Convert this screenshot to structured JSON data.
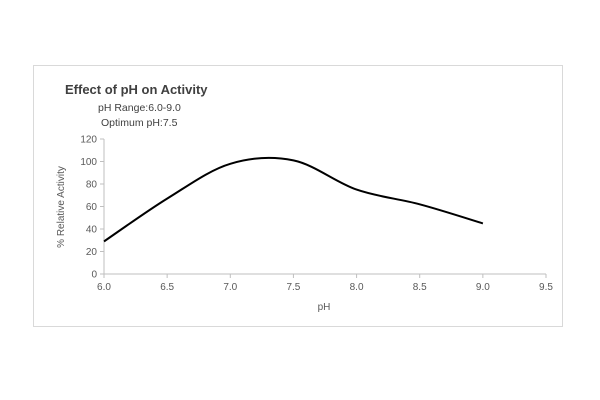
{
  "chart_data": {
    "type": "line",
    "title": "Effect of pH on Activity",
    "subtitle_lines": [
      "pH Range:6.0-9.0",
      "Optimum pH:7.5"
    ],
    "xlabel": "pH",
    "ylabel": "% Relative Activity",
    "xlim": [
      6.0,
      9.5
    ],
    "ylim": [
      0,
      120
    ],
    "x_ticks": [
      "6.0",
      "6.5",
      "7.0",
      "7.5",
      "8.0",
      "8.5",
      "9.0",
      "9.5"
    ],
    "y_ticks": [
      "0",
      "20",
      "40",
      "60",
      "80",
      "100",
      "120"
    ],
    "grid": false,
    "legend": false,
    "series": [
      {
        "x": [
          6.0,
          6.5,
          7.0,
          7.5,
          8.0,
          8.5,
          9.0
        ],
        "y": [
          29,
          67,
          98,
          101,
          75,
          62,
          45
        ]
      }
    ],
    "line_color": "#000000"
  }
}
